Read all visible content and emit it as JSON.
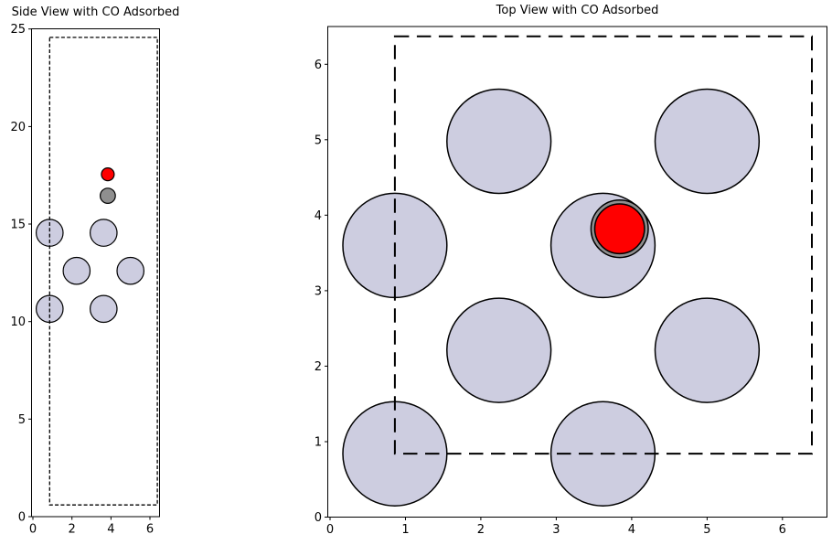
{
  "figure": {
    "background_color": "#ffffff",
    "text_color": "#000000"
  },
  "chart_data": [
    {
      "type": "scatter",
      "title": "Side View with CO Adsorbed",
      "xlabel": "",
      "ylabel": "",
      "xlim": [
        -0.07,
        6.49
      ],
      "ylim": [
        0,
        25.01
      ],
      "xticks": [
        0,
        2,
        4,
        6
      ],
      "yticks": [
        0,
        5,
        10,
        15,
        20,
        25
      ],
      "grid": false,
      "legend": false,
      "unit_cell": {
        "x0": 0.86,
        "y0": 0.6,
        "x1": 6.38,
        "y1": 24.57,
        "style": "dashed"
      },
      "colors": {
        "metal": "#cdcde0",
        "carbon": "#8f8f8f",
        "oxygen": "#ff0000",
        "edge": "#000000"
      },
      "atoms": [
        {
          "species": "metal",
          "x": 0.86,
          "y": 14.55,
          "r": 0.69
        },
        {
          "species": "metal",
          "x": 3.62,
          "y": 14.55,
          "r": 0.69
        },
        {
          "species": "metal",
          "x": 2.24,
          "y": 12.6,
          "r": 0.69
        },
        {
          "species": "metal",
          "x": 5.0,
          "y": 12.6,
          "r": 0.69
        },
        {
          "species": "metal",
          "x": 0.86,
          "y": 10.65,
          "r": 0.69
        },
        {
          "species": "metal",
          "x": 3.62,
          "y": 10.65,
          "r": 0.69
        },
        {
          "species": "carbon",
          "x": 3.84,
          "y": 16.45,
          "r": 0.39
        },
        {
          "species": "oxygen",
          "x": 3.84,
          "y": 17.55,
          "r": 0.33
        }
      ]
    },
    {
      "type": "scatter",
      "title": "Top View with CO Adsorbed",
      "xlabel": "",
      "ylabel": "",
      "xlim": [
        -0.03,
        6.59
      ],
      "ylim": [
        0,
        6.5
      ],
      "xticks": [
        0,
        1,
        2,
        3,
        4,
        5,
        6
      ],
      "yticks": [
        0,
        1,
        2,
        3,
        4,
        5,
        6
      ],
      "grid": false,
      "legend": false,
      "unit_cell": {
        "x0": 0.86,
        "y0": 0.84,
        "x1": 6.39,
        "y1": 6.37,
        "style": "dashed"
      },
      "colors": {
        "metal": "#cdcde0",
        "carbon": "#8f8f8f",
        "oxygen": "#ff0000",
        "edge": "#000000"
      },
      "atoms": [
        {
          "species": "metal",
          "x": 0.86,
          "y": 0.84,
          "r": 0.69
        },
        {
          "species": "metal",
          "x": 3.62,
          "y": 0.84,
          "r": 0.69
        },
        {
          "species": "metal",
          "x": 2.24,
          "y": 2.21,
          "r": 0.69
        },
        {
          "species": "metal",
          "x": 5.0,
          "y": 2.21,
          "r": 0.69
        },
        {
          "species": "metal",
          "x": 0.86,
          "y": 3.6,
          "r": 0.69
        },
        {
          "species": "metal",
          "x": 3.62,
          "y": 3.6,
          "r": 0.69
        },
        {
          "species": "metal",
          "x": 2.24,
          "y": 4.98,
          "r": 0.69
        },
        {
          "species": "metal",
          "x": 5.0,
          "y": 4.98,
          "r": 0.69
        },
        {
          "species": "carbon",
          "x": 3.84,
          "y": 3.82,
          "r": 0.38
        },
        {
          "species": "oxygen",
          "x": 3.84,
          "y": 3.82,
          "r": 0.33
        }
      ]
    }
  ]
}
